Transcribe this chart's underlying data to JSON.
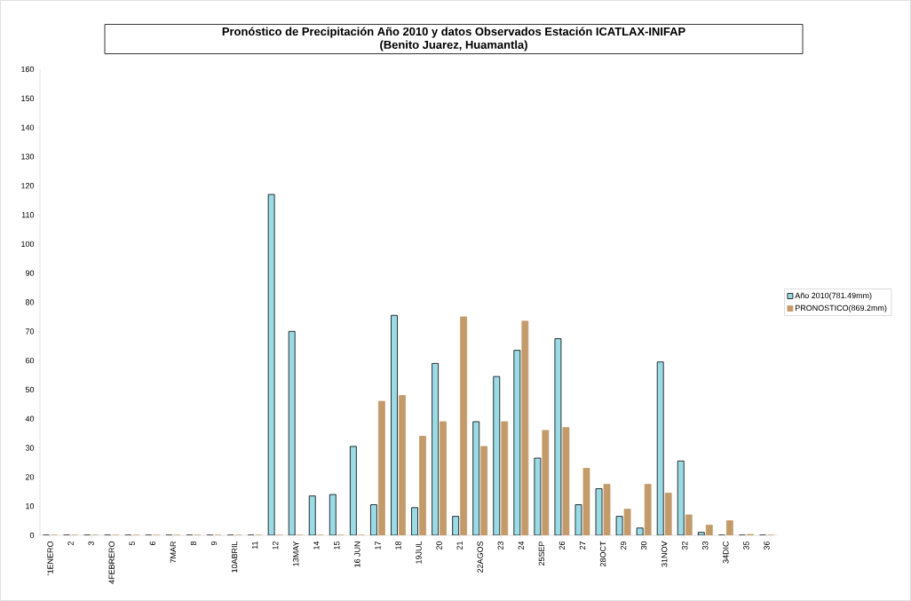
{
  "chart_data": {
    "type": "bar",
    "title": "Pronóstico de Precipitación Año 2010 y datos Observados Estación ICATLAX-INIFAP",
    "subtitle": "(Benito Juarez, Huamantla)",
    "categories": [
      "'1ENERO",
      "2",
      "3",
      "4FEBRERO",
      "5",
      "6",
      "7MAR",
      "8",
      "9",
      "10ABRIL",
      "11",
      "12",
      "13MAY",
      "14",
      "15",
      "16 JUN",
      "17",
      "18",
      "19JUL",
      "20",
      "21",
      "22AGOS",
      "23",
      "24",
      "25SEP",
      "26",
      "27",
      "28OCT",
      "29",
      "30",
      "31NOV",
      "32",
      "33",
      "34DIC",
      "35",
      "36"
    ],
    "series": [
      {
        "name": "Año 2010(781.49mm)",
        "color": "#9bdbe6",
        "values": [
          0,
          0,
          0,
          0,
          0,
          0,
          0,
          0,
          0,
          0,
          0,
          117,
          70,
          13.5,
          14,
          30.5,
          10.5,
          75.5,
          9.5,
          59,
          6.5,
          39,
          54.5,
          63.5,
          26.5,
          67.5,
          10.5,
          16,
          6.5,
          2.5,
          59.5,
          25.5,
          1,
          0,
          0,
          0
        ]
      },
      {
        "name": "PRONOSTICO(869.2mm)",
        "color": "#c39b6b",
        "values": [
          0,
          0,
          0,
          0,
          0,
          0,
          0,
          0,
          0,
          0,
          0,
          0,
          0,
          0,
          0,
          0,
          46,
          48,
          34,
          39,
          75,
          30.5,
          39,
          73.5,
          36,
          37,
          23,
          17.5,
          9,
          17.5,
          14.5,
          7,
          3.5,
          5,
          0.3,
          0
        ]
      }
    ],
    "ylim": [
      0,
      160
    ],
    "yticks": [
      0,
      10,
      20,
      30,
      40,
      50,
      60,
      70,
      80,
      90,
      100,
      110,
      120,
      130,
      140,
      150,
      160
    ],
    "grid": false,
    "legend": "right"
  }
}
